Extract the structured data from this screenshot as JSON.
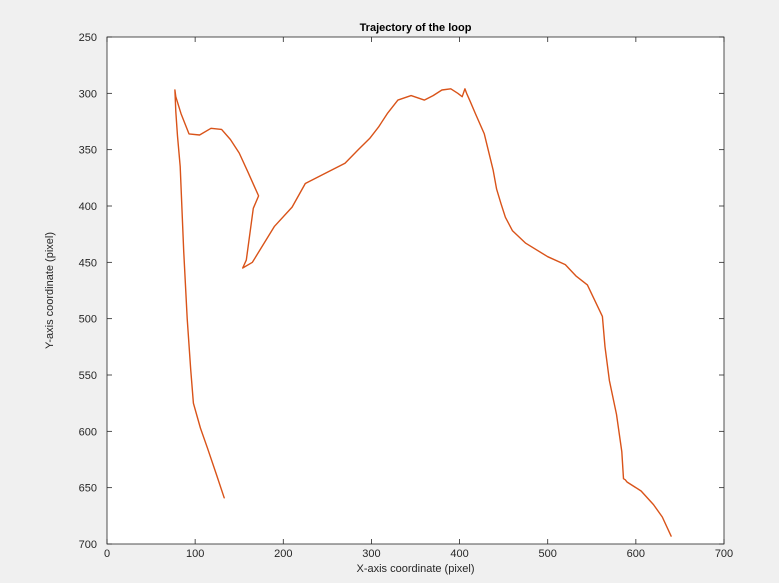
{
  "chart_data": {
    "type": "line",
    "title": "Trajectory of the loop",
    "xlabel": "X-axis coordinate (pixel)",
    "ylabel": "Y-axis coordinate (pixel)",
    "xlim": [
      0,
      700
    ],
    "ylim": [
      250,
      700
    ],
    "y_reversed": true,
    "xticks": [
      0,
      100,
      200,
      300,
      400,
      500,
      600,
      700
    ],
    "yticks": [
      250,
      300,
      350,
      400,
      450,
      500,
      550,
      600,
      650,
      700
    ],
    "grid": false,
    "legend": "none",
    "line_color": "#d95319",
    "series": [
      {
        "x": [
          133,
          124,
          114,
          106,
          98,
          95,
          91,
          87,
          83,
          80,
          78,
          77,
          78,
          84,
          93,
          105,
          118,
          130,
          140,
          150,
          160,
          172,
          166,
          162,
          158,
          154,
          165,
          175,
          190,
          210,
          225,
          245,
          270,
          285,
          298,
          308,
          318,
          330,
          345,
          360,
          370,
          380,
          390,
          398,
          403,
          406,
          408,
          412,
          418,
          428,
          438,
          442,
          447,
          452,
          460,
          475,
          500,
          520,
          532,
          545,
          562,
          565,
          570,
          578,
          584,
          586,
          588,
          590,
          606,
          620,
          630,
          640
        ],
        "y": [
          659,
          638,
          615,
          597,
          575,
          545,
          500,
          440,
          365,
          338,
          316,
          297,
          303,
          318,
          336,
          337,
          331,
          332,
          341,
          353,
          370,
          391,
          402,
          425,
          448,
          455,
          450,
          437,
          418,
          401,
          380,
          372,
          362,
          350,
          340,
          330,
          318,
          306,
          302,
          306,
          302,
          297,
          296,
          300,
          303,
          296,
          300,
          307,
          318,
          336,
          368,
          385,
          398,
          410,
          422,
          433,
          445,
          452,
          462,
          470,
          498,
          525,
          555,
          585,
          618,
          642,
          643,
          645,
          653,
          665,
          676,
          693
        ]
      }
    ]
  }
}
